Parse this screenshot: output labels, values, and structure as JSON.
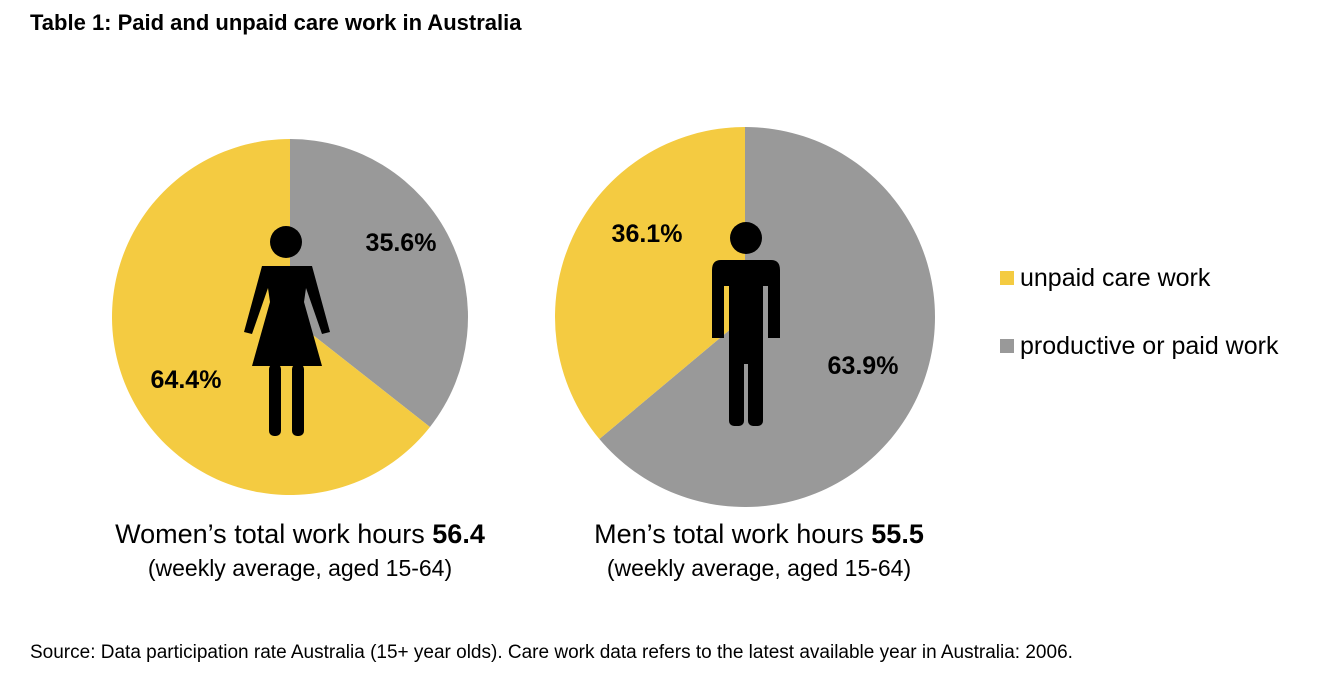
{
  "title": "Table 1: Paid and unpaid care work in Australia",
  "colors": {
    "unpaid": "#F4CB41",
    "paid": "#999999"
  },
  "legend": {
    "unpaid_label": "unpaid care work",
    "paid_label": "productive or paid work"
  },
  "chart_data": [
    {
      "type": "pie",
      "group": "Women",
      "slices": [
        {
          "label": "productive or paid work",
          "value": 35.6,
          "display": "35.6%"
        },
        {
          "label": "unpaid care work",
          "value": 64.4,
          "display": "64.4%"
        }
      ]
    },
    {
      "type": "pie",
      "group": "Men",
      "slices": [
        {
          "label": "productive or paid work",
          "value": 63.9,
          "display": "63.9%"
        },
        {
          "label": "unpaid care work",
          "value": 36.1,
          "display": "36.1%"
        }
      ]
    }
  ],
  "captions": [
    {
      "text": "Women’s total work hours ",
      "hours": "56.4",
      "sub": "(weekly average, aged 15-64)"
    },
    {
      "text": "Men’s total work hours ",
      "hours": "55.5",
      "sub": "(weekly average, aged 15-64)"
    }
  ],
  "source": "Source: Data participation rate Australia (15+ year olds). Care work data refers to the latest available year in Australia: 2006."
}
